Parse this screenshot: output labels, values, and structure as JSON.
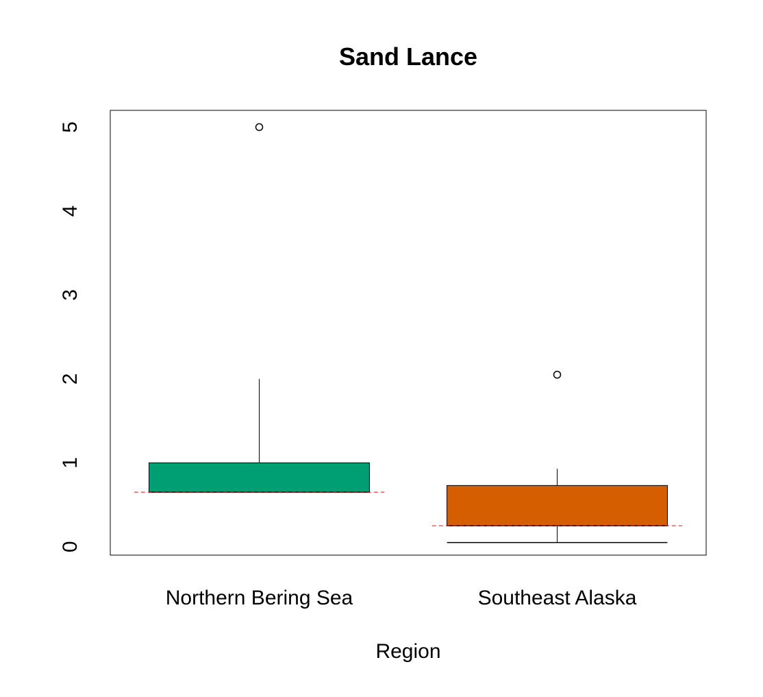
{
  "chart_data": {
    "type": "box",
    "title": "Sand Lance",
    "xlabel": "Region",
    "ylabel": "",
    "ylim": [
      -0.1,
      5.2
    ],
    "y_ticks": [
      0,
      1,
      2,
      3,
      4,
      5
    ],
    "y_tick_labels": [
      "0",
      "1",
      "2",
      "3",
      "4",
      "5"
    ],
    "grid": false,
    "categories": [
      "Northern Bering Sea",
      "Southeast Alaska"
    ],
    "boxes": [
      {
        "category": "Northern Bering Sea",
        "color": "#009E73",
        "whisker_low": 0.65,
        "q1": 0.65,
        "median": 0.65,
        "q3": 1.0,
        "whisker_high": 2.0,
        "mean": 0.65,
        "outliers": [
          5.0
        ]
      },
      {
        "category": "Southeast Alaska",
        "color": "#D55E00",
        "whisker_low": 0.05,
        "q1": 0.25,
        "median": 0.25,
        "q3": 0.73,
        "whisker_high": 0.93,
        "mean": 0.25,
        "outliers": [
          2.05
        ]
      }
    ],
    "mean_line_color": "#FF0000"
  }
}
